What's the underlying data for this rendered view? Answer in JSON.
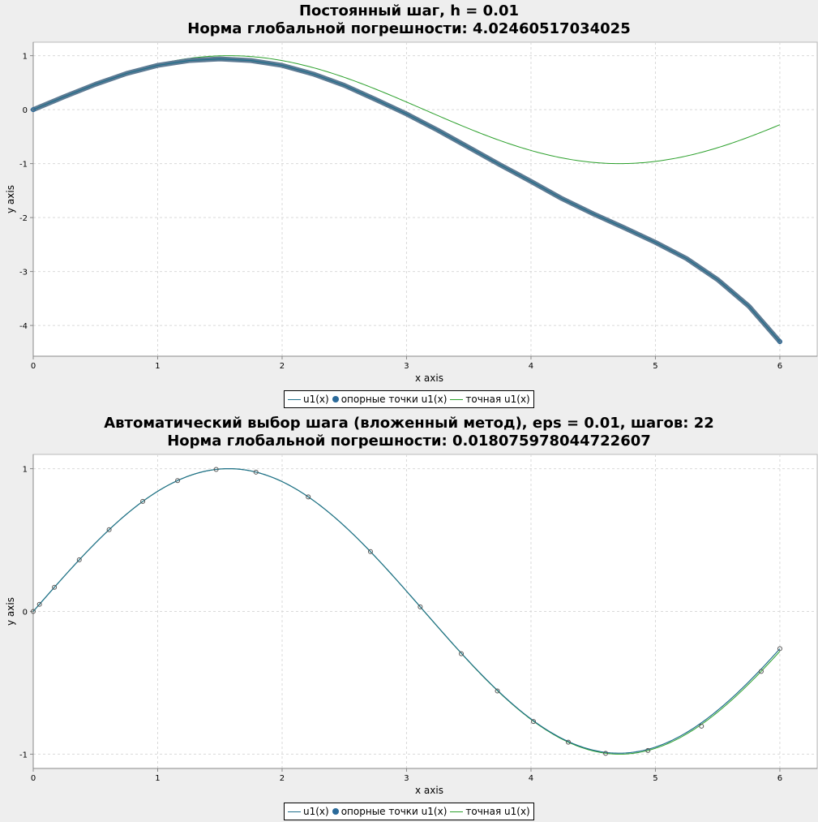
{
  "colors": {
    "numeric": "#1f6f8b",
    "numeric_thick": "#5c7a93",
    "points": "#2b6a9a",
    "exact": "#2ca02c",
    "grid": "#d9d9d9",
    "axis": "#888888"
  },
  "chart_data": [
    {
      "type": "line",
      "title": "Постоянный шаг, h = 0.01",
      "subtitle": "Норма глобальной погрешности: 4.02460517034025",
      "xlabel": "x axis",
      "ylabel": "y axis",
      "xlim": [
        0,
        6.3
      ],
      "ylim": [
        -4.57,
        1.25
      ],
      "xticks": [
        0,
        1,
        2,
        3,
        4,
        5,
        6
      ],
      "yticks": [
        -4,
        -3,
        -2,
        -1,
        0,
        1
      ],
      "grid": true,
      "legend": [
        "u1(x)",
        "опорные точки u1(x)",
        "точная u1(x)"
      ],
      "series": [
        {
          "name": "u1(x)",
          "x": [
            0,
            0.25,
            0.5,
            0.75,
            1.0,
            1.25,
            1.5,
            1.75,
            2.0,
            2.25,
            2.5,
            2.75,
            3.0,
            3.25,
            3.5,
            3.75,
            4.0,
            4.25,
            4.5,
            4.75,
            5.0,
            5.25,
            5.5,
            5.75,
            6.0
          ],
          "y": [
            0,
            0.24,
            0.47,
            0.67,
            0.82,
            0.91,
            0.94,
            0.91,
            0.82,
            0.66,
            0.45,
            0.19,
            -0.08,
            -0.38,
            -0.7,
            -1.02,
            -1.33,
            -1.65,
            -1.93,
            -2.19,
            -2.46,
            -2.76,
            -3.15,
            -3.64,
            -4.3
          ]
        },
        {
          "name": "опорные точки u1(x)",
          "x": [
            0,
            0.25,
            0.5,
            0.75,
            1.0,
            1.25,
            1.5,
            1.75,
            2.0,
            2.25,
            2.5,
            2.75,
            3.0,
            3.25,
            3.5,
            3.75,
            4.0,
            4.25,
            4.5,
            4.75,
            5.0,
            5.25,
            5.5,
            5.75,
            6.0
          ],
          "y": [
            0,
            0.24,
            0.47,
            0.67,
            0.82,
            0.91,
            0.94,
            0.91,
            0.82,
            0.66,
            0.45,
            0.19,
            -0.08,
            -0.38,
            -0.7,
            -1.02,
            -1.33,
            -1.65,
            -1.93,
            -2.19,
            -2.46,
            -2.76,
            -3.15,
            -3.64,
            -4.3
          ]
        },
        {
          "name": "точная u1(x)",
          "function": "sin(x)",
          "x_range": [
            0,
            6
          ]
        }
      ]
    },
    {
      "type": "line",
      "title": "Автоматический выбор шага (вложенный метод), eps = 0.01, шагов: 22",
      "subtitle": "Норма глобальной погрешности: 0.018075978044722607",
      "xlabel": "x axis",
      "ylabel": "y axis",
      "xlim": [
        0,
        6.3
      ],
      "ylim": [
        -1.1,
        1.1
      ],
      "xticks": [
        0,
        1,
        2,
        3,
        4,
        5,
        6
      ],
      "yticks": [
        -1,
        0,
        1
      ],
      "grid": true,
      "legend": [
        "u1(x)",
        "опорные точки u1(x)",
        "точная u1(x)"
      ],
      "series": [
        {
          "name": "u1(x)",
          "function": "sin(x)",
          "end_error": 0.018,
          "x_range": [
            0,
            6
          ]
        },
        {
          "name": "опорные точки u1(x)",
          "x": [
            0,
            0.05,
            0.17,
            0.37,
            0.61,
            0.88,
            1.16,
            1.47,
            1.79,
            2.21,
            2.71,
            3.11,
            3.44,
            3.73,
            4.02,
            4.3,
            4.6,
            4.94,
            5.37,
            5.85,
            6.0
          ],
          "y": [
            0,
            0.05,
            0.169,
            0.362,
            0.573,
            0.771,
            0.917,
            0.995,
            0.976,
            0.802,
            0.419,
            0.032,
            -0.296,
            -0.557,
            -0.771,
            -0.916,
            -0.994,
            -0.974,
            -0.804,
            -0.42,
            -0.261
          ]
        },
        {
          "name": "точная u1(x)",
          "function": "sin(x)",
          "x_range": [
            0,
            6
          ]
        }
      ]
    }
  ]
}
